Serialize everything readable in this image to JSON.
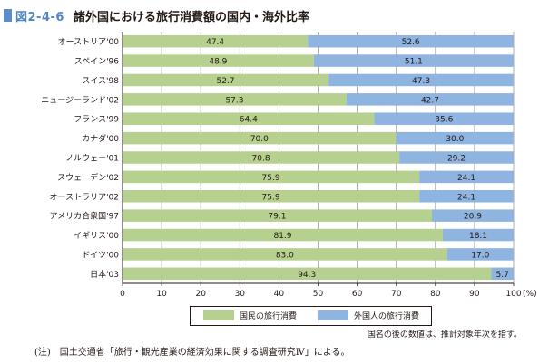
{
  "figure": {
    "number": "図2-4-6",
    "title": "諸外国における旅行消費額の国内・海外比率"
  },
  "chart_data": {
    "type": "bar",
    "stacked": true,
    "orientation": "horizontal",
    "categories": [
      "オーストリア'00",
      "スペイン'96",
      "スイス'98",
      "ニュージーランド'02",
      "フランス'99",
      "カナダ'00",
      "ノルウェー'01",
      "スウェーデン'02",
      "オーストラリア'02",
      "アメリカ合衆国'97",
      "イギリス'00",
      "ドイツ'00",
      "日本'03"
    ],
    "series": [
      {
        "name": "国民の旅行消費",
        "color": "#b5d08f",
        "values": [
          47.4,
          48.9,
          52.7,
          57.3,
          64.4,
          70.0,
          70.8,
          75.9,
          75.9,
          79.1,
          81.9,
          83.0,
          94.3
        ],
        "labels": [
          "47.4",
          "48.9",
          "52.7",
          "57.3",
          "64.4",
          "70.0",
          "70.8",
          "75.9",
          "75.9",
          "79.1",
          "81.9",
          "83.0",
          "94.3"
        ]
      },
      {
        "name": "外国人の旅行消費",
        "color": "#8fb4e0",
        "values": [
          52.6,
          51.1,
          47.3,
          42.7,
          35.6,
          30.0,
          29.2,
          24.1,
          24.1,
          20.9,
          18.1,
          17.0,
          5.7
        ],
        "labels": [
          "52.6",
          "51.1",
          "47.3",
          "42.7",
          "35.6",
          "30.0",
          "29.2",
          "24.1",
          "24.1",
          "20.9",
          "18.1",
          "17.0",
          "5.7"
        ]
      }
    ],
    "xlim": [
      0,
      100
    ],
    "xticks": [
      "0",
      "10",
      "20",
      "30",
      "40",
      "50",
      "60",
      "70",
      "80",
      "90",
      "100"
    ],
    "xunit": "(%)",
    "grid": true
  },
  "legend": {
    "domestic": "国民の旅行消費",
    "foreign": "外国人の旅行消費"
  },
  "note": "国名の後の数値は、推計対象年次を指す。",
  "source": "(注)　国土交通省「旅行・観光産業の経済効果に関する調査研究Ⅳ」による。"
}
